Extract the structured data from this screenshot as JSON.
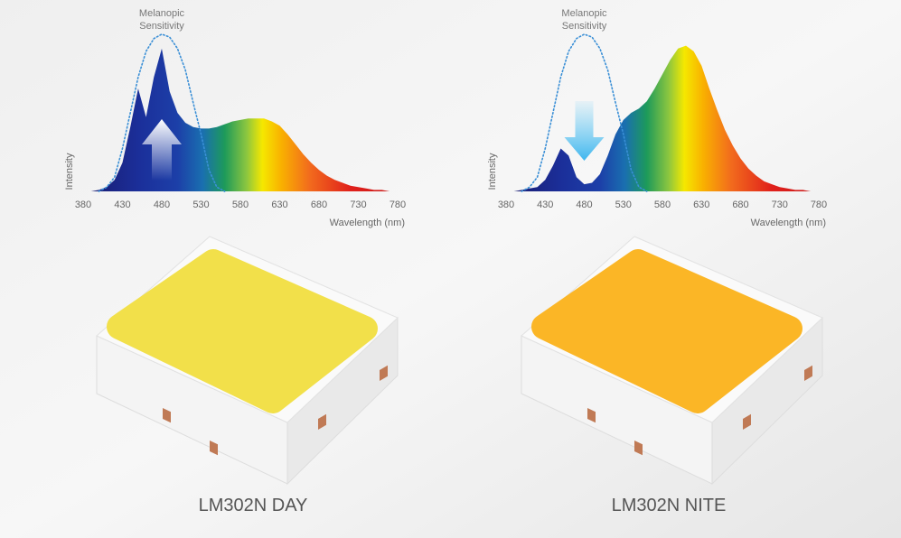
{
  "chart_data": [
    {
      "type": "area",
      "title": "LM302N DAY",
      "xlabel": "Wavelength (nm)",
      "ylabel": "Intensity",
      "x": [
        380,
        390,
        400,
        410,
        420,
        430,
        440,
        450,
        460,
        470,
        480,
        490,
        500,
        510,
        520,
        530,
        540,
        550,
        560,
        570,
        580,
        590,
        600,
        610,
        620,
        630,
        640,
        650,
        660,
        670,
        680,
        690,
        700,
        710,
        720,
        730,
        740,
        750,
        760,
        770,
        780
      ],
      "series": [
        {
          "name": "Spectrum",
          "color": "spectrum",
          "values": [
            0,
            0,
            1,
            3,
            8,
            20,
            45,
            72,
            52,
            80,
            100,
            70,
            55,
            48,
            45,
            44,
            44,
            45,
            47,
            49,
            50,
            51,
            51,
            51,
            49,
            46,
            40,
            33,
            26,
            20,
            15,
            11,
            8,
            6,
            4,
            3,
            2,
            1,
            1,
            0,
            0
          ]
        },
        {
          "name": "Melanopic Sensitivity",
          "color": "#3a8fd6",
          "values": [
            null,
            null,
            0,
            3,
            10,
            30,
            55,
            80,
            98,
            107,
            110,
            108,
            100,
            85,
            62,
            40,
            15,
            3,
            0,
            null,
            null,
            null,
            null,
            null,
            null,
            null,
            null,
            null,
            null,
            null,
            null,
            null,
            null,
            null,
            null,
            null,
            null,
            null,
            null,
            null,
            null
          ]
        }
      ],
      "xlim": [
        380,
        780
      ],
      "xticks": [
        380,
        430,
        480,
        530,
        580,
        630,
        680,
        730,
        780
      ],
      "ylim": [
        0,
        115
      ],
      "arrow": "up",
      "chip_color": "#f2e04a"
    },
    {
      "type": "area",
      "title": "LM302N NITE",
      "xlabel": "Wavelength (nm)",
      "ylabel": "Intensity",
      "x": [
        380,
        390,
        400,
        410,
        420,
        430,
        440,
        450,
        460,
        470,
        480,
        490,
        500,
        510,
        520,
        530,
        540,
        550,
        560,
        570,
        580,
        590,
        600,
        610,
        620,
        630,
        640,
        650,
        660,
        670,
        680,
        690,
        700,
        710,
        720,
        730,
        740,
        750,
        760,
        770,
        780
      ],
      "series": [
        {
          "name": "Spectrum",
          "color": "spectrum",
          "values": [
            0,
            0,
            1,
            2,
            3,
            8,
            18,
            30,
            25,
            10,
            5,
            6,
            12,
            25,
            40,
            50,
            55,
            58,
            63,
            72,
            82,
            92,
            100,
            102,
            98,
            88,
            72,
            57,
            43,
            32,
            23,
            16,
            11,
            7,
            5,
            3,
            2,
            1,
            1,
            0,
            0
          ]
        },
        {
          "name": "Melanopic Sensitivity",
          "color": "#3a8fd6",
          "values": [
            null,
            null,
            0,
            3,
            10,
            30,
            55,
            80,
            98,
            107,
            110,
            108,
            100,
            85,
            62,
            40,
            15,
            3,
            0,
            null,
            null,
            null,
            null,
            null,
            null,
            null,
            null,
            null,
            null,
            null,
            null,
            null,
            null,
            null,
            null,
            null,
            null,
            null,
            null,
            null,
            null
          ]
        }
      ],
      "xlim": [
        380,
        780
      ],
      "xticks": [
        380,
        430,
        480,
        530,
        580,
        630,
        680,
        730,
        780
      ],
      "ylim": [
        0,
        115
      ],
      "arrow": "down",
      "chip_color": "#fbb626"
    }
  ]
}
